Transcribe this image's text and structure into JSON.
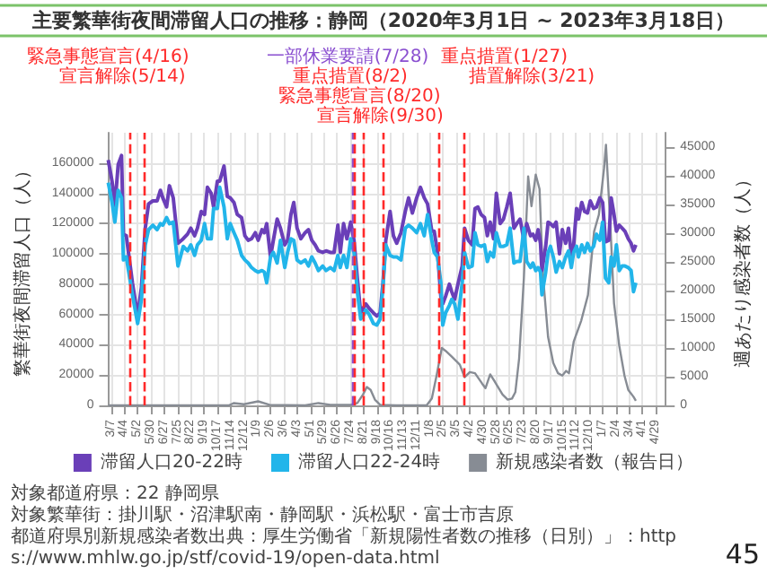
{
  "chart_data": {
    "type": "line",
    "title": "主要繁華街夜間滞留人口の推移：静岡（2020年3月1日 ~ 2023年3月18日）",
    "ylabel": "繁華街夜間滞留人口（人）",
    "y2label": "週あたり感染者数（人）",
    "x": [
      "2020-03-01",
      "2020-03-09",
      "2020-03-15",
      "2020-03-22",
      "2020-03-29",
      "2020-04-02",
      "2020-04-08",
      "2020-04-21",
      "2020-05-02",
      "2020-05-10",
      "2020-05-18",
      "2020-05-25",
      "2020-06-03",
      "2020-06-12",
      "2020-06-19",
      "2020-06-24",
      "2020-07-02",
      "2020-07-08",
      "2020-07-16",
      "2020-07-26",
      "2020-08-06",
      "2020-08-15",
      "2020-08-22",
      "2020-08-30",
      "2020-09-05",
      "2020-09-13",
      "2020-09-20",
      "2020-09-26",
      "2020-10-04",
      "2020-10-09",
      "2020-10-17",
      "2020-10-22",
      "2020-10-31",
      "2020-11-07",
      "2020-11-13",
      "2020-11-21",
      "2020-11-28",
      "2020-12-07",
      "2020-12-14",
      "2020-12-21",
      "2020-12-28",
      "2021-01-05",
      "2021-01-11",
      "2021-01-19",
      "2021-01-24",
      "2021-01-29",
      "2021-02-06",
      "2021-02-12",
      "2021-02-20",
      "2021-02-27",
      "2021-03-08",
      "2021-03-14",
      "2021-03-21",
      "2021-03-27",
      "2021-04-03",
      "2021-04-11",
      "2021-04-20",
      "2021-04-27",
      "2021-05-04",
      "2021-05-11",
      "2021-05-18",
      "2021-05-27",
      "2021-06-03",
      "2021-06-12",
      "2021-06-20",
      "2021-06-28",
      "2021-07-03",
      "2021-07-10",
      "2021-07-17",
      "2021-07-25",
      "2021-08-01",
      "2021-08-08",
      "2021-08-15",
      "2021-08-20",
      "2021-08-26",
      "2021-09-02",
      "2021-09-11",
      "2021-09-18",
      "2021-09-25",
      "2021-10-01",
      "2021-10-07",
      "2021-10-16",
      "2021-10-23",
      "2021-10-30",
      "2021-11-08",
      "2021-11-17",
      "2021-11-24",
      "2021-12-02",
      "2021-12-11",
      "2021-12-19",
      "2021-12-27",
      "2022-01-03",
      "2022-01-12",
      "2022-01-17",
      "2022-01-24",
      "2022-01-31",
      "2022-02-04",
      "2022-02-10",
      "2022-02-18",
      "2022-02-23",
      "2022-03-01",
      "2022-03-08",
      "2022-03-17",
      "2022-03-22",
      "2022-03-30",
      "2022-04-07",
      "2022-04-13",
      "2022-04-19",
      "2022-04-26",
      "2022-05-03",
      "2022-05-09",
      "2022-05-15",
      "2022-05-22",
      "2022-05-28",
      "2022-06-05",
      "2022-06-12",
      "2022-06-19",
      "2022-06-26",
      "2022-07-04",
      "2022-07-10",
      "2022-07-17",
      "2022-07-25",
      "2022-07-31",
      "2022-08-08",
      "2022-08-13",
      "2022-08-19",
      "2022-08-24",
      "2022-08-29",
      "2022-09-01",
      "2022-09-09",
      "2022-09-14",
      "2022-09-19",
      "2022-09-25",
      "2022-10-01",
      "2022-10-08",
      "2022-10-14",
      "2022-10-21",
      "2022-10-27",
      "2022-11-02",
      "2022-11-07",
      "2022-11-13",
      "2022-11-17",
      "2022-11-24",
      "2022-11-30",
      "2022-12-06",
      "2022-12-12",
      "2022-12-19",
      "2022-12-25",
      "2023-01-01",
      "2023-01-07",
      "2023-01-13",
      "2023-01-20",
      "2023-01-25",
      "2023-01-31",
      "2023-02-05",
      "2023-02-11",
      "2023-02-17",
      "2023-02-23",
      "2023-03-02",
      "2023-03-08",
      "2023-03-13",
      "2023-03-18"
    ],
    "series": [
      {
        "name": "滞留人口20-22時",
        "color": "#6a3fb8",
        "values": [
          162000,
          148000,
          132000,
          159000,
          165000,
          113000,
          112000,
          81000,
          59000,
          78000,
          117000,
          133000,
          135000,
          135000,
          142000,
          137000,
          131000,
          145000,
          137000,
          107000,
          110000,
          113000,
          117000,
          112000,
          117000,
          128000,
          126000,
          144000,
          140000,
          131000,
          148000,
          148000,
          158000,
          138000,
          137000,
          134000,
          126000,
          124000,
          112000,
          109000,
          110000,
          114000,
          109000,
          116000,
          114000,
          120000,
          98000,
          109000,
          123000,
          117000,
          106000,
          109000,
          126000,
          134000,
          117000,
          110000,
          114000,
          116000,
          109000,
          106000,
          102000,
          101000,
          102000,
          101000,
          101000,
          119000,
          101000,
          120000,
          110000,
          121000,
          109000,
          84000,
          61000,
          64000,
          67000,
          64000,
          61000,
          59000,
          61000,
          81000,
          109000,
          128000,
          112000,
          107000,
          114000,
          128000,
          137000,
          127000,
          137000,
          144000,
          137000,
          133000,
          115000,
          115000,
          101000,
          72000,
          67000,
          72000,
          80000,
          75000,
          70000,
          80000,
          92000,
          117000,
          109000,
          106000,
          130000,
          131000,
          126000,
          124000,
          112000,
          121000,
          110000,
          140000,
          120000,
          123000,
          131000,
          140000,
          117000,
          120000,
          123000,
          109000,
          120000,
          112000,
          113000,
          109000,
          116000,
          107000,
          89000,
          105000,
          121000,
          120000,
          118000,
          121000,
          100000,
          116000,
          107000,
          117000,
          99000,
          106000,
          130000,
          123000,
          134000,
          128000,
          127000,
          135000,
          130000,
          131000,
          137000,
          134000,
          108000,
          109000,
          137000,
          126000,
          115000,
          119000,
          117000,
          115000,
          110000,
          107000,
          102000,
          106000
        ]
      },
      {
        "name": "滞留人口22-24時",
        "color": "#22b5ea",
        "values": [
          147000,
          134000,
          121000,
          142000,
          137000,
          96000,
          98000,
          73000,
          54000,
          70000,
          106000,
          116000,
          119000,
          116000,
          120000,
          119000,
          124000,
          120000,
          121000,
          92000,
          105000,
          102000,
          106000,
          99000,
          106000,
          109000,
          120000,
          110000,
          110000,
          130000,
          130000,
          144000,
          131000,
          110000,
          120000,
          114000,
          109000,
          99000,
          96000,
          94000,
          91000,
          89000,
          88000,
          89000,
          88000,
          81000,
          98000,
          101000,
          94000,
          109000,
          91000,
          101000,
          110000,
          109000,
          96000,
          94000,
          96000,
          92000,
          98000,
          94000,
          89000,
          92000,
          89000,
          91000,
          89000,
          99000,
          91000,
          99000,
          91000,
          110000,
          101000,
          75000,
          57000,
          59000,
          63000,
          60000,
          54000,
          53000,
          57000,
          78000,
          106000,
          99000,
          98000,
          98000,
          96000,
          117000,
          119000,
          117000,
          114000,
          120000,
          112000,
          126000,
          109000,
          101000,
          98000,
          81000,
          53000,
          61000,
          66000,
          70000,
          67000,
          57000,
          81000,
          101000,
          91000,
          92000,
          114000,
          106000,
          105000,
          106000,
          95000,
          101000,
          98000,
          114000,
          105000,
          105000,
          106000,
          117000,
          94000,
          95000,
          95000,
          117000,
          95000,
          91000,
          94000,
          89000,
          91000,
          88000,
          73000,
          88000,
          101000,
          105000,
          98000,
          88000,
          95000,
          91000,
          98000,
          102000,
          91000,
          101000,
          105000,
          98000,
          106000,
          101000,
          107000,
          102000,
          105000,
          113000,
          109000,
          121000,
          84000,
          81000,
          98000,
          92000,
          106000,
          89000,
          92000,
          92000,
          91000,
          89000,
          75000,
          81000
        ]
      },
      {
        "name": "新規感染者数（報告日）",
        "color": "#878c94",
        "axis": "y2",
        "x": [
          "2020-03-01",
          "2020-11-10",
          "2020-11-21",
          "2020-12-12",
          "2021-01-11",
          "2021-02-04",
          "2021-04-20",
          "2021-05-18",
          "2021-06-12",
          "2021-07-25",
          "2021-08-08",
          "2021-08-20",
          "2021-08-28",
          "2021-09-05",
          "2021-09-14",
          "2021-09-25",
          "2021-10-29",
          "2022-01-01",
          "2022-01-12",
          "2022-01-22",
          "2022-02-02",
          "2022-02-10",
          "2022-02-23",
          "2022-03-12",
          "2022-03-22",
          "2022-04-02",
          "2022-04-13",
          "2022-04-28",
          "2022-05-05",
          "2022-05-15",
          "2022-05-25",
          "2022-06-10",
          "2022-06-21",
          "2022-06-30",
          "2022-07-07",
          "2022-07-15",
          "2022-07-25",
          "2022-08-03",
          "2022-08-10",
          "2022-08-19",
          "2022-08-27",
          "2022-09-03",
          "2022-09-14",
          "2022-09-25",
          "2022-10-05",
          "2022-10-14",
          "2022-10-22",
          "2022-10-28",
          "2022-11-07",
          "2022-11-23",
          "2022-12-07",
          "2022-12-20",
          "2022-12-30",
          "2023-01-10",
          "2023-01-14",
          "2023-01-23",
          "2023-01-31",
          "2023-02-11",
          "2023-02-22",
          "2023-03-02",
          "2023-03-13",
          "2023-03-18"
        ],
        "values": [
          0,
          0,
          400,
          200,
          700,
          100,
          0,
          400,
          100,
          100,
          400,
          1900,
          3200,
          2700,
          1000,
          100,
          0,
          0,
          1200,
          5200,
          10000,
          9500,
          8500,
          7100,
          4900,
          5800,
          5600,
          3800,
          3000,
          5400,
          4100,
          1900,
          1000,
          1200,
          2300,
          8200,
          22200,
          39900,
          34700,
          40200,
          37700,
          22900,
          11900,
          7400,
          5600,
          5200,
          6000,
          5600,
          11100,
          14800,
          19200,
          30300,
          33200,
          41300,
          45400,
          31800,
          17800,
          10400,
          5200,
          2700,
          1500,
          800
        ]
      }
    ],
    "xlim": [
      "2020-03-01",
      "2023-05-20"
    ],
    "xticks": [
      {
        "value": "2020-03-07",
        "label": "3/7"
      },
      {
        "value": "2020-04-04",
        "label": "4/4"
      },
      {
        "value": "2020-05-02",
        "label": "5/2"
      },
      {
        "value": "2020-05-30",
        "label": "5/30"
      },
      {
        "value": "2020-06-27",
        "label": "6/27"
      },
      {
        "value": "2020-07-25",
        "label": "7/25"
      },
      {
        "value": "2020-08-22",
        "label": "8/22"
      },
      {
        "value": "2020-09-19",
        "label": "9/19"
      },
      {
        "value": "2020-10-17",
        "label": "10/17"
      },
      {
        "value": "2020-11-14",
        "label": "11/14"
      },
      {
        "value": "2020-12-12",
        "label": "12/12"
      },
      {
        "value": "2021-01-09",
        "label": "1/9"
      },
      {
        "value": "2021-02-06",
        "label": "2/6"
      },
      {
        "value": "2021-03-06",
        "label": "3/6"
      },
      {
        "value": "2021-04-03",
        "label": "4/3"
      },
      {
        "value": "2021-05-01",
        "label": "5/1"
      },
      {
        "value": "2021-05-29",
        "label": "5/29"
      },
      {
        "value": "2021-06-26",
        "label": "6/26"
      },
      {
        "value": "2021-07-24",
        "label": "7/24"
      },
      {
        "value": "2021-08-21",
        "label": "8/21"
      },
      {
        "value": "2021-09-18",
        "label": "9/18"
      },
      {
        "value": "2021-10-16",
        "label": "10/16"
      },
      {
        "value": "2021-11-13",
        "label": "11/13"
      },
      {
        "value": "2021-12-11",
        "label": "12/11"
      },
      {
        "value": "2022-01-08",
        "label": "1/8"
      },
      {
        "value": "2022-02-05",
        "label": "2/5"
      },
      {
        "value": "2022-03-05",
        "label": "3/5"
      },
      {
        "value": "2022-04-02",
        "label": "4/2"
      },
      {
        "value": "2022-04-30",
        "label": "4/30"
      },
      {
        "value": "2022-05-28",
        "label": "5/28"
      },
      {
        "value": "2022-06-25",
        "label": "6/25"
      },
      {
        "value": "2022-07-23",
        "label": "7/23"
      },
      {
        "value": "2022-08-20",
        "label": "8/20"
      },
      {
        "value": "2022-09-17",
        "label": "9/17"
      },
      {
        "value": "2022-10-15",
        "label": "10/15"
      },
      {
        "value": "2022-11-12",
        "label": "11/12"
      },
      {
        "value": "2022-12-10",
        "label": "12/10"
      },
      {
        "value": "2023-01-07",
        "label": "1/7"
      },
      {
        "value": "2023-02-04",
        "label": "2/4"
      },
      {
        "value": "2023-03-04",
        "label": "3/4"
      },
      {
        "value": "2023-04-01",
        "label": "4/1"
      },
      {
        "value": "2023-04-29",
        "label": "4/29"
      }
    ],
    "ylim": [
      0,
      180000
    ],
    "yticks": [
      0,
      20000,
      40000,
      60000,
      80000,
      100000,
      120000,
      140000,
      160000
    ],
    "y2lim": [
      0,
      47500
    ],
    "y2ticks": [
      0,
      5000,
      10000,
      15000,
      20000,
      25000,
      30000,
      35000,
      40000,
      45000
    ],
    "ref_lines": [
      {
        "axis": "x",
        "value": "2020-04-16",
        "label": "緊急事態宣言(4/16)",
        "color": "#ff2a2a",
        "line_style": "dashed"
      },
      {
        "axis": "x",
        "value": "2020-05-14",
        "label": "宣言解除(5/14)",
        "color": "#ff2a2a",
        "line_style": "dashed"
      },
      {
        "axis": "x",
        "value": "2021-07-28",
        "label": "一部休業要請(7/28)",
        "color": "#8a4fd0",
        "line_style": "dashed"
      },
      {
        "axis": "x",
        "value": "2021-08-02",
        "label": "重点措置(8/2)",
        "color": "#ff2a2a",
        "line_style": "dashed"
      },
      {
        "axis": "x",
        "value": "2021-08-20",
        "label": "緊急事態宣言(8/20)",
        "color": "#ff2a2a",
        "line_style": "dashed"
      },
      {
        "axis": "x",
        "value": "2021-09-30",
        "label": "宣言解除(9/30)",
        "color": "#ff2a2a",
        "line_style": "dashed"
      },
      {
        "axis": "x",
        "value": "2022-01-27",
        "label": "重点措置(1/27)",
        "color": "#ff2a2a",
        "line_style": "dashed"
      },
      {
        "axis": "x",
        "value": "2022-03-21",
        "label": "措置解除(3/21)",
        "color": "#ff2a2a",
        "line_style": "dashed"
      }
    ],
    "annotations": [
      "対象都道府県：22 静岡県",
      "対象繁華街：掛川駅・沼津駅南・静岡駅・浜松駅・富士市吉原",
      "都道府県別新規感染者数出典：厚生労働省「新規陽性者数の推移（日別）」：https://www.mhlw.go.jp/stf/covid-19/open-data.html",
      "45"
    ],
    "grid": true,
    "legend": "bottom",
    "marker": "none"
  }
}
